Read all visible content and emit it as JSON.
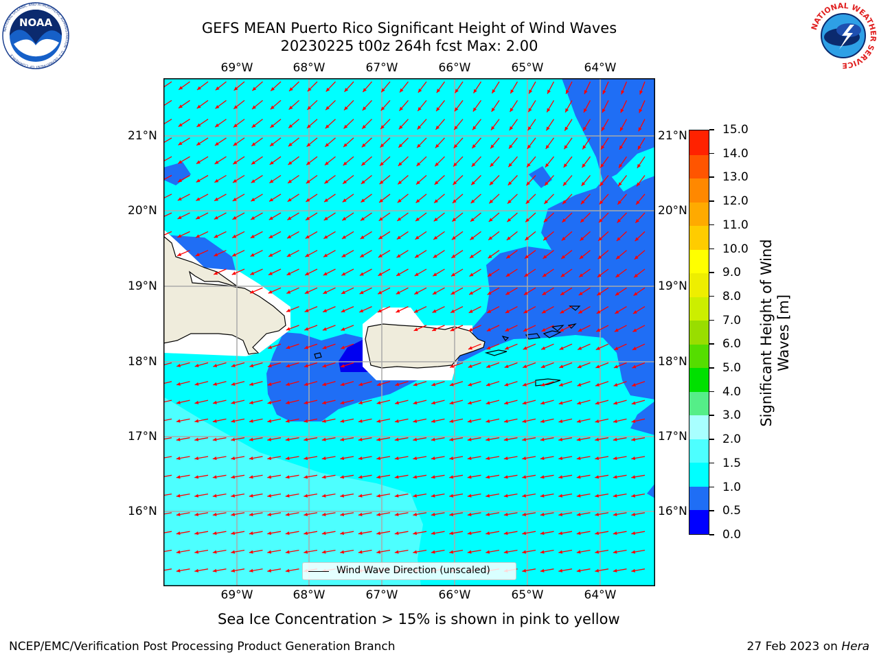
{
  "header": {
    "title": "GEFS MEAN Puerto Rico Significant Height of Wind Waves",
    "subtitle": "20230225 t00z 264h fcst   Max: 2.00"
  },
  "logos": {
    "left_text": "NOAA",
    "left_ring_text": "NATIONAL OCEANIC AND ATMOSPHERIC ADMINISTRATION · U.S. DEPARTMENT OF COMMERCE",
    "right_ring_text": "NATIONAL WEATHER SERVICE"
  },
  "map": {
    "lon_labels": [
      "69°W",
      "68°W",
      "67°W",
      "66°W",
      "65°W",
      "64°W"
    ],
    "lat_labels": [
      "21°N",
      "20°N",
      "19°N",
      "18°N",
      "17°N",
      "16°N"
    ],
    "wind_direction": "from east-northeast (arrows point west-southwest)",
    "legend_label": "Wind Wave Direction (unscaled)",
    "colors": {
      "ocean_0_5_1_0": "#1f6ef5",
      "ocean_1_0_1_5": "#00ffff",
      "ocean_1_5_2_0": "#4dffff",
      "deep_0_0_0_5": "#0000f0",
      "land": "#efecdc",
      "arrow": "#ff0000",
      "grid": "#aaaaaa"
    }
  },
  "colorbar": {
    "title_line1": "Significant Height of Wind",
    "title_line2": "Waves [m]",
    "tick_labels": [
      "0.0",
      "0.5",
      "1.0",
      "1.5",
      "2.0",
      "3.0",
      "4.0",
      "5.0",
      "6.0",
      "7.0",
      "8.0",
      "9.0",
      "10.0",
      "11.0",
      "12.0",
      "13.0",
      "14.0",
      "15.0"
    ],
    "colors": [
      "#0000ff",
      "#1f6ef5",
      "#00ffff",
      "#4dffff",
      "#a8ffff",
      "#55ee88",
      "#00e000",
      "#55dd00",
      "#99dd00",
      "#ccee00",
      "#eeee00",
      "#ffff00",
      "#ffcc00",
      "#ffaa00",
      "#ff8800",
      "#ff5500",
      "#ff2200"
    ]
  },
  "caption": "Sea Ice Concentration > 15% is shown in pink to yellow",
  "footer": {
    "left": "NCEP/EMC/Verification Post Processing Product Generation Branch",
    "right_prefix": "27 Feb 2023 on ",
    "right_host": "Hera"
  }
}
